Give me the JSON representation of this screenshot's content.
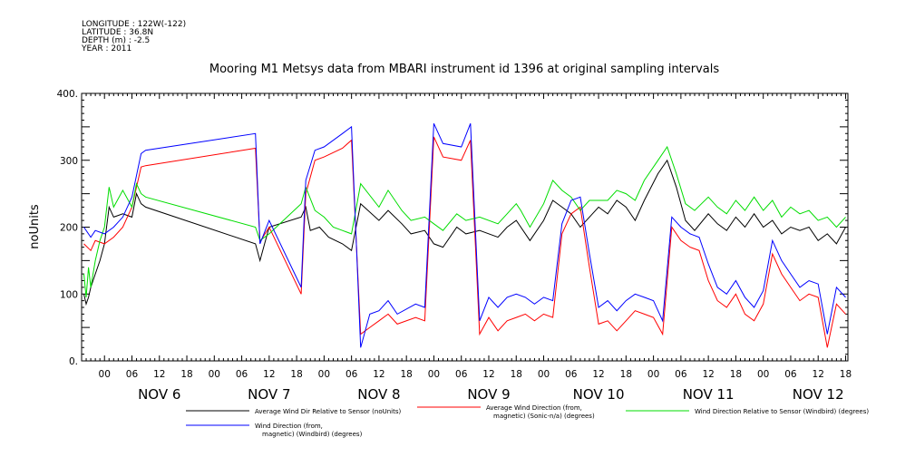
{
  "meta": {
    "longitude": "LONGITUDE : 122W(-122)",
    "latitude": "LATITUDE : 36.8N",
    "depth": "DEPTH (m) : -2.5",
    "year": "YEAR : 2011"
  },
  "chart_data": {
    "type": "line",
    "title": "Mooring M1 Metsys data from MBARI instrument id 1396 at original sampling intervals",
    "ylabel": "noUnits",
    "xlabel": "",
    "ylim": [
      0,
      400
    ],
    "yticks": [
      "0.",
      "100",
      "200",
      "300",
      "400."
    ],
    "xlim_hours": [
      -5,
      162.5
    ],
    "hour_ticks": [
      "00",
      "06",
      "12",
      "18",
      "00",
      "06",
      "12",
      "18",
      "00",
      "06",
      "12",
      "18",
      "00",
      "06",
      "12",
      "18",
      "00",
      "06",
      "12",
      "18",
      "00",
      "06",
      "12",
      "18",
      "00",
      "06",
      "12",
      "18"
    ],
    "day_labels": [
      "NOV  6",
      "NOV  7",
      "NOV  8",
      "NOV  9",
      "NOV 10",
      "NOV 11",
      "NOV 12"
    ],
    "legend_position": "bottom",
    "series": [
      {
        "name": "Average Wind Dir Relative to Sensor (noUnits)",
        "color": "#000000",
        "points": [
          [
            -4.5,
            100
          ],
          [
            -4,
            85
          ],
          [
            -3.5,
            95
          ],
          [
            -3,
            110
          ],
          [
            -2,
            130
          ],
          [
            -1,
            150
          ],
          [
            0,
            175
          ],
          [
            1,
            230
          ],
          [
            2,
            215
          ],
          [
            4,
            220
          ],
          [
            6,
            215
          ],
          [
            7,
            250
          ],
          [
            8,
            235
          ],
          [
            9,
            230
          ],
          [
            33,
            175
          ],
          [
            34,
            150
          ],
          [
            36,
            200
          ],
          [
            43,
            215
          ],
          [
            44,
            230
          ],
          [
            45,
            195
          ],
          [
            47,
            200
          ],
          [
            49,
            185
          ],
          [
            52,
            175
          ],
          [
            54,
            165
          ],
          [
            56,
            235
          ],
          [
            60,
            210
          ],
          [
            62,
            225
          ],
          [
            65,
            205
          ],
          [
            67,
            190
          ],
          [
            70,
            195
          ],
          [
            72,
            175
          ],
          [
            74,
            170
          ],
          [
            77,
            200
          ],
          [
            79,
            190
          ],
          [
            82,
            195
          ],
          [
            86,
            185
          ],
          [
            88,
            200
          ],
          [
            90,
            210
          ],
          [
            91,
            200
          ],
          [
            93,
            180
          ],
          [
            96,
            210
          ],
          [
            98,
            240
          ],
          [
            100,
            230
          ],
          [
            102,
            220
          ],
          [
            104,
            200
          ],
          [
            106,
            215
          ],
          [
            108,
            230
          ],
          [
            110,
            220
          ],
          [
            112,
            240
          ],
          [
            114,
            230
          ],
          [
            116,
            210
          ],
          [
            118,
            240
          ],
          [
            121,
            280
          ],
          [
            123,
            300
          ],
          [
            125,
            260
          ],
          [
            127,
            210
          ],
          [
            129,
            195
          ],
          [
            132,
            220
          ],
          [
            134,
            205
          ],
          [
            136,
            195
          ],
          [
            138,
            215
          ],
          [
            140,
            200
          ],
          [
            142,
            220
          ],
          [
            144,
            200
          ],
          [
            146,
            210
          ],
          [
            148,
            190
          ],
          [
            150,
            200
          ],
          [
            152,
            195
          ],
          [
            154,
            200
          ],
          [
            156,
            180
          ],
          [
            158,
            190
          ],
          [
            160,
            175
          ],
          [
            162,
            200
          ]
        ]
      },
      {
        "name": "Average Wind Direction (from, magnetic) (Sonic-n/a) (degrees)",
        "color": "#ff0000",
        "points": [
          [
            -4.5,
            175
          ],
          [
            -3,
            165
          ],
          [
            -2,
            180
          ],
          [
            0,
            175
          ],
          [
            2,
            185
          ],
          [
            4,
            200
          ],
          [
            6,
            230
          ],
          [
            8,
            290
          ],
          [
            9,
            292
          ],
          [
            33,
            318
          ],
          [
            34,
            178
          ],
          [
            36,
            200
          ],
          [
            43,
            100
          ],
          [
            44,
            250
          ],
          [
            46,
            300
          ],
          [
            48,
            305
          ],
          [
            52,
            318
          ],
          [
            54,
            330
          ],
          [
            56,
            40
          ],
          [
            58,
            50
          ],
          [
            60,
            60
          ],
          [
            62,
            70
          ],
          [
            64,
            55
          ],
          [
            68,
            65
          ],
          [
            70,
            60
          ],
          [
            72,
            335
          ],
          [
            74,
            305
          ],
          [
            78,
            300
          ],
          [
            80,
            330
          ],
          [
            82,
            40
          ],
          [
            84,
            65
          ],
          [
            86,
            45
          ],
          [
            88,
            60
          ],
          [
            90,
            65
          ],
          [
            92,
            70
          ],
          [
            94,
            60
          ],
          [
            96,
            70
          ],
          [
            98,
            65
          ],
          [
            100,
            190
          ],
          [
            102,
            220
          ],
          [
            104,
            230
          ],
          [
            106,
            140
          ],
          [
            108,
            55
          ],
          [
            110,
            60
          ],
          [
            112,
            45
          ],
          [
            114,
            60
          ],
          [
            116,
            75
          ],
          [
            118,
            70
          ],
          [
            120,
            65
          ],
          [
            122,
            40
          ],
          [
            124,
            200
          ],
          [
            126,
            180
          ],
          [
            128,
            170
          ],
          [
            130,
            165
          ],
          [
            132,
            120
          ],
          [
            134,
            90
          ],
          [
            136,
            80
          ],
          [
            138,
            100
          ],
          [
            140,
            70
          ],
          [
            142,
            60
          ],
          [
            144,
            85
          ],
          [
            146,
            160
          ],
          [
            148,
            130
          ],
          [
            150,
            110
          ],
          [
            152,
            90
          ],
          [
            154,
            100
          ],
          [
            156,
            95
          ],
          [
            158,
            20
          ],
          [
            160,
            85
          ],
          [
            162,
            70
          ]
        ]
      },
      {
        "name": "Wind Direction Relative to Sensor (Windbird) (degrees)",
        "color": "#00dd00",
        "points": [
          [
            -4.5,
            130
          ],
          [
            -4,
            95
          ],
          [
            -3.5,
            140
          ],
          [
            -3,
            110
          ],
          [
            -2,
            150
          ],
          [
            -1,
            180
          ],
          [
            0,
            200
          ],
          [
            1,
            260
          ],
          [
            2,
            230
          ],
          [
            4,
            255
          ],
          [
            6,
            230
          ],
          [
            7,
            265
          ],
          [
            8,
            250
          ],
          [
            9,
            245
          ],
          [
            33,
            200
          ],
          [
            34,
            180
          ],
          [
            36,
            190
          ],
          [
            43,
            235
          ],
          [
            44,
            260
          ],
          [
            46,
            225
          ],
          [
            48,
            215
          ],
          [
            50,
            200
          ],
          [
            52,
            195
          ],
          [
            54,
            190
          ],
          [
            56,
            265
          ],
          [
            60,
            230
          ],
          [
            62,
            255
          ],
          [
            65,
            225
          ],
          [
            67,
            210
          ],
          [
            70,
            215
          ],
          [
            72,
            205
          ],
          [
            74,
            195
          ],
          [
            77,
            220
          ],
          [
            79,
            210
          ],
          [
            82,
            215
          ],
          [
            86,
            205
          ],
          [
            88,
            220
          ],
          [
            90,
            235
          ],
          [
            91,
            225
          ],
          [
            93,
            200
          ],
          [
            96,
            235
          ],
          [
            98,
            270
          ],
          [
            100,
            255
          ],
          [
            102,
            245
          ],
          [
            104,
            225
          ],
          [
            106,
            240
          ],
          [
            108,
            240
          ],
          [
            110,
            240
          ],
          [
            112,
            255
          ],
          [
            114,
            250
          ],
          [
            116,
            240
          ],
          [
            118,
            270
          ],
          [
            121,
            300
          ],
          [
            123,
            320
          ],
          [
            125,
            280
          ],
          [
            127,
            235
          ],
          [
            129,
            225
          ],
          [
            132,
            245
          ],
          [
            134,
            230
          ],
          [
            136,
            220
          ],
          [
            138,
            240
          ],
          [
            140,
            225
          ],
          [
            142,
            245
          ],
          [
            144,
            225
          ],
          [
            146,
            240
          ],
          [
            148,
            215
          ],
          [
            150,
            230
          ],
          [
            152,
            220
          ],
          [
            154,
            225
          ],
          [
            156,
            210
          ],
          [
            158,
            215
          ],
          [
            160,
            200
          ],
          [
            162,
            215
          ]
        ]
      },
      {
        "name": "Wind Direction (from, magnetic) (Windbird) (degrees)",
        "color": "#0000ff",
        "points": [
          [
            -4.5,
            200
          ],
          [
            -3,
            185
          ],
          [
            -2,
            195
          ],
          [
            0,
            190
          ],
          [
            2,
            200
          ],
          [
            4,
            215
          ],
          [
            6,
            245
          ],
          [
            8,
            310
          ],
          [
            9,
            315
          ],
          [
            33,
            340
          ],
          [
            34,
            175
          ],
          [
            36,
            210
          ],
          [
            43,
            110
          ],
          [
            44,
            270
          ],
          [
            46,
            315
          ],
          [
            48,
            320
          ],
          [
            52,
            340
          ],
          [
            54,
            350
          ],
          [
            56,
            20
          ],
          [
            58,
            70
          ],
          [
            60,
            75
          ],
          [
            62,
            90
          ],
          [
            64,
            70
          ],
          [
            68,
            85
          ],
          [
            70,
            80
          ],
          [
            72,
            355
          ],
          [
            74,
            325
          ],
          [
            78,
            320
          ],
          [
            80,
            355
          ],
          [
            82,
            60
          ],
          [
            84,
            95
          ],
          [
            86,
            80
          ],
          [
            88,
            95
          ],
          [
            90,
            100
          ],
          [
            92,
            95
          ],
          [
            94,
            85
          ],
          [
            96,
            95
          ],
          [
            98,
            90
          ],
          [
            100,
            205
          ],
          [
            102,
            240
          ],
          [
            104,
            245
          ],
          [
            106,
            160
          ],
          [
            108,
            80
          ],
          [
            110,
            90
          ],
          [
            112,
            75
          ],
          [
            114,
            90
          ],
          [
            116,
            100
          ],
          [
            118,
            95
          ],
          [
            120,
            90
          ],
          [
            122,
            60
          ],
          [
            124,
            215
          ],
          [
            126,
            200
          ],
          [
            128,
            190
          ],
          [
            130,
            185
          ],
          [
            132,
            145
          ],
          [
            134,
            110
          ],
          [
            136,
            100
          ],
          [
            138,
            120
          ],
          [
            140,
            95
          ],
          [
            142,
            80
          ],
          [
            144,
            105
          ],
          [
            146,
            180
          ],
          [
            148,
            150
          ],
          [
            150,
            130
          ],
          [
            152,
            110
          ],
          [
            154,
            120
          ],
          [
            156,
            115
          ],
          [
            158,
            40
          ],
          [
            160,
            110
          ],
          [
            162,
            95
          ]
        ]
      }
    ],
    "legend": [
      {
        "label_line1": "Average Wind Dir Relative to Sensor (noUnits)",
        "label_line2": "",
        "color": "#000000"
      },
      {
        "label_line1": "Average Wind Direction (from,",
        "label_line2": "magnetic) (Sonic-n/a) (degrees)",
        "color": "#ff0000"
      },
      {
        "label_line1": "Wind Direction Relative to Sensor (Windbird) (degrees)",
        "label_line2": "",
        "color": "#00dd00"
      },
      {
        "label_line1": "Wind Direction (from,",
        "label_line2": "magnetic) (Windbird) (degrees)",
        "color": "#0000ff"
      }
    ]
  }
}
